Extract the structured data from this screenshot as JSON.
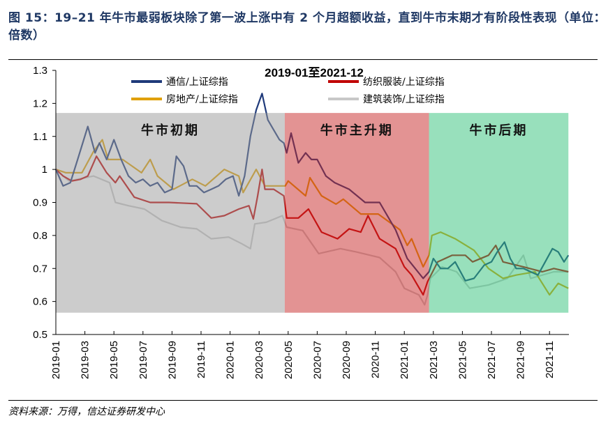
{
  "header": {
    "title": "图 15：19–21 年牛市最弱板块除了第一波上涨中有 2 个月超额收益，直到牛市末期才有阶段性表现（单位：倍数）"
  },
  "footer": {
    "source": "资料来源：万得，信达证券研发中心"
  },
  "chart_data": {
    "type": "line",
    "title": "2019-01至2021-12",
    "xlabel": "",
    "ylabel": "",
    "ylim": [
      0.5,
      1.3
    ],
    "yticks": [
      "0.5",
      "0.6",
      "0.7",
      "0.8",
      "0.9",
      "1",
      "1.1",
      "1.2",
      "1.3"
    ],
    "xlim": [
      "2019-01-01",
      "2021-12-10"
    ],
    "xticks": [
      "2019-01",
      "2019-03",
      "2019-05",
      "2019-07",
      "2019-09",
      "2019-11",
      "2020-01",
      "2020-03",
      "2020-05",
      "2020-07",
      "2020-09",
      "2020-11",
      "2021-01",
      "2021-03",
      "2021-05",
      "2021-07",
      "2021-09",
      "2021-11"
    ],
    "grid": false,
    "legend": "top",
    "phases": [
      {
        "label": "牛市初期",
        "start": "2019-01-01",
        "end": "2020-04-24",
        "ymin": 0.566,
        "ymax": 1.171,
        "color": "#999999"
      },
      {
        "label": "牛市主升期",
        "start": "2020-04-24",
        "end": "2021-02-22",
        "ymin": 0.566,
        "ymax": 1.171,
        "color": "#c82828"
      },
      {
        "label": "牛市后期",
        "start": "2021-02-22",
        "end": "2021-12-10",
        "ymin": 0.566,
        "ymax": 1.171,
        "color": "#32c179"
      }
    ],
    "series": [
      {
        "name": "通信/上证综指",
        "color": "#1f3a7a",
        "points": [
          [
            "2019-01-01",
            1.0
          ],
          [
            "2019-01-16",
            0.95
          ],
          [
            "2019-02-01",
            0.96
          ],
          [
            "2019-02-16",
            1.03
          ],
          [
            "2019-03-07",
            1.13
          ],
          [
            "2019-03-22",
            1.05
          ],
          [
            "2019-04-01",
            1.08
          ],
          [
            "2019-04-16",
            1.03
          ],
          [
            "2019-05-01",
            1.09
          ],
          [
            "2019-05-16",
            1.03
          ],
          [
            "2019-06-01",
            0.98
          ],
          [
            "2019-06-16",
            0.96
          ],
          [
            "2019-07-01",
            0.97
          ],
          [
            "2019-07-16",
            0.95
          ],
          [
            "2019-08-01",
            0.96
          ],
          [
            "2019-08-16",
            0.93
          ],
          [
            "2019-09-01",
            0.94
          ],
          [
            "2019-09-10",
            1.04
          ],
          [
            "2019-09-25",
            1.01
          ],
          [
            "2019-10-07",
            0.95
          ],
          [
            "2019-10-22",
            0.95
          ],
          [
            "2019-11-07",
            0.93
          ],
          [
            "2019-11-22",
            0.94
          ],
          [
            "2019-12-07",
            0.95
          ],
          [
            "2019-12-22",
            0.97
          ],
          [
            "2020-01-07",
            0.98
          ],
          [
            "2020-01-19",
            0.92
          ],
          [
            "2020-02-01",
            0.98
          ],
          [
            "2020-02-13",
            1.1
          ],
          [
            "2020-02-25",
            1.18
          ],
          [
            "2020-03-07",
            1.23
          ],
          [
            "2020-03-19",
            1.15
          ],
          [
            "2020-04-01",
            1.12
          ],
          [
            "2020-04-13",
            1.09
          ],
          [
            "2020-04-22",
            1.08
          ],
          [
            "2020-04-28",
            1.05
          ],
          [
            "2020-05-07",
            1.11
          ],
          [
            "2020-05-22",
            1.02
          ],
          [
            "2020-06-07",
            1.05
          ],
          [
            "2020-06-19",
            1.03
          ],
          [
            "2020-07-01",
            1.03
          ],
          [
            "2020-07-19",
            0.98
          ],
          [
            "2020-08-07",
            0.96
          ],
          [
            "2020-09-07",
            0.94
          ],
          [
            "2020-10-10",
            0.9
          ],
          [
            "2020-11-10",
            0.9
          ],
          [
            "2020-12-13",
            0.817
          ],
          [
            "2021-01-07",
            0.73
          ],
          [
            "2021-02-10",
            0.67
          ],
          [
            "2021-02-22",
            0.69
          ],
          [
            "2021-03-01",
            0.73
          ],
          [
            "2021-03-16",
            0.7
          ],
          [
            "2021-04-01",
            0.7
          ],
          [
            "2021-04-16",
            0.72
          ],
          [
            "2021-05-07",
            0.663
          ],
          [
            "2021-05-25",
            0.67
          ],
          [
            "2021-06-16",
            0.71
          ],
          [
            "2021-07-01",
            0.72
          ],
          [
            "2021-07-13",
            0.75
          ],
          [
            "2021-07-28",
            0.78
          ],
          [
            "2021-08-10",
            0.73
          ],
          [
            "2021-08-22",
            0.7
          ],
          [
            "2021-09-07",
            0.7
          ],
          [
            "2021-09-22",
            0.69
          ],
          [
            "2021-10-07",
            0.68
          ],
          [
            "2021-10-22",
            0.72
          ],
          [
            "2021-11-07",
            0.76
          ],
          [
            "2021-11-19",
            0.75
          ],
          [
            "2021-12-01",
            0.72
          ],
          [
            "2021-12-10",
            0.74
          ]
        ]
      },
      {
        "name": "纺织服装/上证综指",
        "color": "#c00000",
        "points": [
          [
            "2019-01-01",
            1.0
          ],
          [
            "2019-01-16",
            0.98
          ],
          [
            "2019-02-04",
            0.965
          ],
          [
            "2019-02-22",
            0.97
          ],
          [
            "2019-03-07",
            0.98
          ],
          [
            "2019-03-25",
            1.04
          ],
          [
            "2019-04-16",
            0.99
          ],
          [
            "2019-05-04",
            0.96
          ],
          [
            "2019-05-13",
            0.98
          ],
          [
            "2019-06-13",
            0.916
          ],
          [
            "2019-07-16",
            0.9
          ],
          [
            "2019-08-25",
            0.9
          ],
          [
            "2019-10-22",
            0.896
          ],
          [
            "2019-11-22",
            0.853
          ],
          [
            "2019-12-19",
            0.86
          ],
          [
            "2020-01-19",
            0.88
          ],
          [
            "2020-02-10",
            0.89
          ],
          [
            "2020-02-19",
            0.85
          ],
          [
            "2020-02-28",
            0.92
          ],
          [
            "2020-03-07",
            1.0
          ],
          [
            "2020-03-13",
            0.94
          ],
          [
            "2020-04-01",
            0.94
          ],
          [
            "2020-04-22",
            0.92
          ],
          [
            "2020-04-28",
            0.853
          ],
          [
            "2020-05-22",
            0.853
          ],
          [
            "2020-06-13",
            0.88
          ],
          [
            "2020-07-10",
            0.81
          ],
          [
            "2020-08-13",
            0.79
          ],
          [
            "2020-09-07",
            0.82
          ],
          [
            "2020-10-01",
            0.81
          ],
          [
            "2020-10-16",
            0.86
          ],
          [
            "2020-11-10",
            0.79
          ],
          [
            "2020-12-13",
            0.76
          ],
          [
            "2021-01-01",
            0.705
          ],
          [
            "2021-01-16",
            0.68
          ],
          [
            "2021-02-10",
            0.62
          ],
          [
            "2021-02-19",
            0.66
          ],
          [
            "2021-03-10",
            0.72
          ],
          [
            "2021-04-10",
            0.74
          ],
          [
            "2021-05-07",
            0.74
          ],
          [
            "2021-05-22",
            0.72
          ],
          [
            "2021-06-25",
            0.74
          ],
          [
            "2021-07-10",
            0.77
          ],
          [
            "2021-07-25",
            0.72
          ],
          [
            "2021-09-07",
            0.705
          ],
          [
            "2021-10-16",
            0.69
          ],
          [
            "2021-11-10",
            0.7
          ],
          [
            "2021-12-10",
            0.69
          ]
        ]
      },
      {
        "name": "房地产/上证综指",
        "color": "#e0a000",
        "points": [
          [
            "2019-01-01",
            1.0
          ],
          [
            "2019-01-22",
            0.99
          ],
          [
            "2019-02-25",
            0.99
          ],
          [
            "2019-03-19",
            1.055
          ],
          [
            "2019-04-07",
            1.09
          ],
          [
            "2019-04-19",
            1.03
          ],
          [
            "2019-05-19",
            1.03
          ],
          [
            "2019-06-28",
            0.99
          ],
          [
            "2019-07-16",
            1.03
          ],
          [
            "2019-08-01",
            0.98
          ],
          [
            "2019-09-04",
            0.94
          ],
          [
            "2019-10-13",
            0.97
          ],
          [
            "2019-11-10",
            0.95
          ],
          [
            "2019-12-19",
            1.0
          ],
          [
            "2020-01-19",
            0.98
          ],
          [
            "2020-01-28",
            0.93
          ],
          [
            "2020-02-25",
            1.0
          ],
          [
            "2020-03-13",
            0.95
          ],
          [
            "2020-04-25",
            0.95
          ],
          [
            "2020-05-01",
            0.965
          ],
          [
            "2020-06-07",
            0.92
          ],
          [
            "2020-06-16",
            0.975
          ],
          [
            "2020-07-10",
            0.92
          ],
          [
            "2020-08-10",
            0.895
          ],
          [
            "2020-08-25",
            0.91
          ],
          [
            "2020-10-01",
            0.865
          ],
          [
            "2020-11-07",
            0.865
          ],
          [
            "2020-12-22",
            0.817
          ],
          [
            "2021-01-07",
            0.77
          ],
          [
            "2021-01-16",
            0.79
          ],
          [
            "2021-02-10",
            0.705
          ],
          [
            "2021-02-22",
            0.74
          ],
          [
            "2021-02-28",
            0.8
          ],
          [
            "2021-03-16",
            0.81
          ],
          [
            "2021-04-16",
            0.79
          ],
          [
            "2021-05-25",
            0.755
          ],
          [
            "2021-06-25",
            0.7
          ],
          [
            "2021-07-25",
            0.67
          ],
          [
            "2021-08-22",
            0.68
          ],
          [
            "2021-10-01",
            0.69
          ],
          [
            "2021-11-01",
            0.62
          ],
          [
            "2021-11-19",
            0.655
          ],
          [
            "2021-12-10",
            0.64
          ]
        ]
      },
      {
        "name": "建筑装饰/上证综指",
        "color": "#c8c8c8",
        "points": [
          [
            "2019-01-01",
            1.0
          ],
          [
            "2019-01-28",
            0.965
          ],
          [
            "2019-03-19",
            0.98
          ],
          [
            "2019-04-22",
            0.96
          ],
          [
            "2019-05-04",
            0.9
          ],
          [
            "2019-06-01",
            0.89
          ],
          [
            "2019-07-04",
            0.88
          ],
          [
            "2019-08-10",
            0.845
          ],
          [
            "2019-09-19",
            0.825
          ],
          [
            "2019-10-22",
            0.82
          ],
          [
            "2019-11-22",
            0.79
          ],
          [
            "2019-12-28",
            0.795
          ],
          [
            "2020-01-25",
            0.775
          ],
          [
            "2020-02-13",
            0.76
          ],
          [
            "2020-02-22",
            0.835
          ],
          [
            "2020-03-16",
            0.84
          ],
          [
            "2020-04-19",
            0.86
          ],
          [
            "2020-04-28",
            0.825
          ],
          [
            "2020-06-01",
            0.815
          ],
          [
            "2020-07-04",
            0.745
          ],
          [
            "2020-08-19",
            0.76
          ],
          [
            "2020-09-22",
            0.75
          ],
          [
            "2020-11-10",
            0.733
          ],
          [
            "2020-12-13",
            0.69
          ],
          [
            "2021-01-01",
            0.64
          ],
          [
            "2021-02-01",
            0.62
          ],
          [
            "2021-02-13",
            0.59
          ],
          [
            "2021-02-19",
            0.62
          ],
          [
            "2021-02-25",
            0.67
          ],
          [
            "2021-03-19",
            0.705
          ],
          [
            "2021-04-19",
            0.69
          ],
          [
            "2021-05-16",
            0.64
          ],
          [
            "2021-06-25",
            0.65
          ],
          [
            "2021-08-04",
            0.67
          ],
          [
            "2021-09-07",
            0.74
          ],
          [
            "2021-09-22",
            0.67
          ],
          [
            "2021-11-10",
            0.69
          ],
          [
            "2021-12-10",
            0.69
          ]
        ]
      }
    ]
  }
}
